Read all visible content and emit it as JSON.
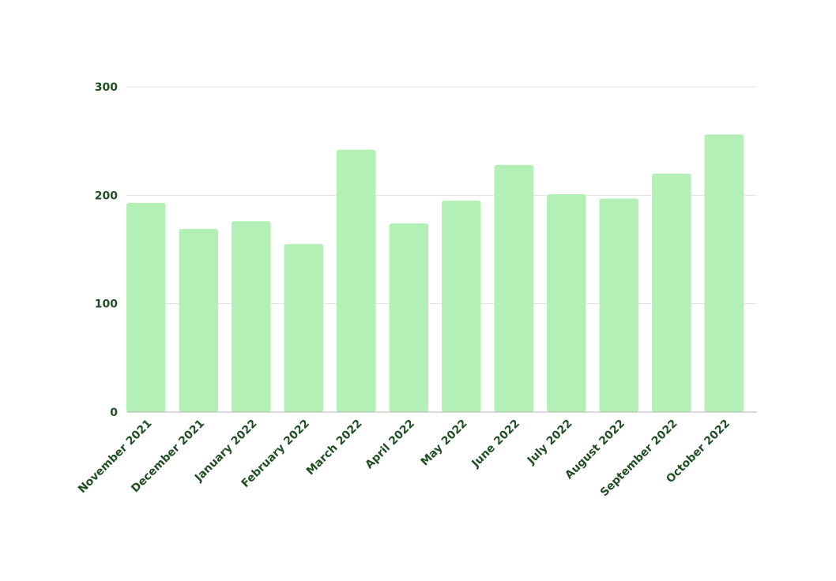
{
  "colors": {
    "bar": "#b3f0b5",
    "text": "#1f4f23",
    "grid": "#e2e2e2",
    "axis": "#b5b5b5"
  },
  "chart_data": {
    "type": "bar",
    "title": "",
    "xlabel": "",
    "ylabel": "",
    "ylim": [
      0,
      300
    ],
    "yticks": [
      "0",
      "100",
      "200",
      "300"
    ],
    "grid": true,
    "legend": "none",
    "categories": [
      "November 2021",
      "December 2021",
      "January 2022",
      "February 2022",
      "March 2022",
      "April 2022",
      "May 2022",
      "June 2022",
      "July 2022",
      "August 2022",
      "September 2022",
      "October 2022"
    ],
    "values": [
      193,
      169,
      176,
      155,
      242,
      174,
      195,
      228,
      201,
      197,
      220,
      256
    ]
  }
}
